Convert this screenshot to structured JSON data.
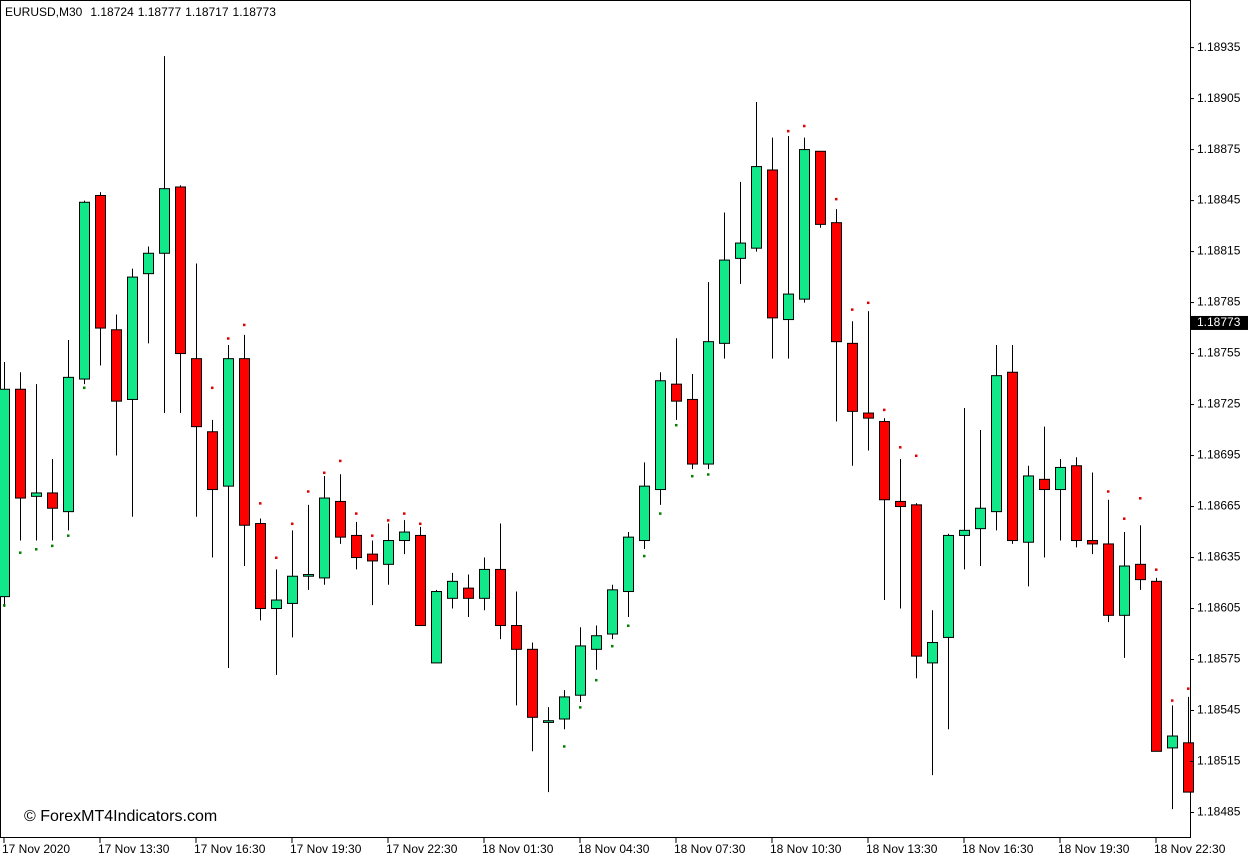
{
  "chart_data": {
    "type": "candlestick",
    "symbol": "EURUSD,M30",
    "quote": [
      1.18724,
      1.18777,
      1.18717,
      1.18773
    ],
    "watermark": "© ForexMT4Indicators.com",
    "current_price": 1.18773,
    "up_color": "#10e88a",
    "down_color": "#ff0000",
    "dot_above_color": "#e00000",
    "dot_below_color": "#008000",
    "ylim": [
      1.1847,
      1.18963
    ],
    "yticks": [
      1.18935,
      1.18905,
      1.18875,
      1.18845,
      1.18815,
      1.18785,
      1.18755,
      1.18725,
      1.18695,
      1.18665,
      1.18635,
      1.18605,
      1.18575,
      1.18545,
      1.18515,
      1.18485
    ],
    "xticks": [
      {
        "value": 0,
        "label": "17 Nov 2020"
      },
      {
        "value": 6,
        "label": "17 Nov 13:30"
      },
      {
        "value": 12,
        "label": "17 Nov 16:30"
      },
      {
        "value": 18,
        "label": "17 Nov 19:30"
      },
      {
        "value": 24,
        "label": "17 Nov 22:30"
      },
      {
        "value": 30,
        "label": "18 Nov 01:30"
      },
      {
        "value": 36,
        "label": "18 Nov 04:30"
      },
      {
        "value": 42,
        "label": "18 Nov 07:30"
      },
      {
        "value": 48,
        "label": "18 Nov 10:30"
      },
      {
        "value": 54,
        "label": "18 Nov 13:30"
      },
      {
        "value": 60,
        "label": "18 Nov 16:30"
      },
      {
        "value": 66,
        "label": "18 Nov 19:30"
      },
      {
        "value": 72,
        "label": "18 Nov 22:30"
      }
    ],
    "open": [
      1.18612,
      1.18734,
      1.18671,
      1.18673,
      1.18662,
      1.1874,
      1.18848,
      1.18769,
      1.18728,
      1.18802,
      1.18814,
      1.18853,
      1.18752,
      1.18709,
      1.18677,
      1.18752,
      1.18655,
      1.18605,
      1.18608,
      1.18624,
      1.18623,
      1.18668,
      1.18648,
      1.18637,
      1.18631,
      1.18645,
      1.18648,
      1.18573,
      1.18611,
      1.18617,
      1.18611,
      1.18628,
      1.18595,
      1.18581,
      1.18538,
      1.1854,
      1.18554,
      1.18581,
      1.1859,
      1.18615,
      1.18645,
      1.18675,
      1.18737,
      1.18728,
      1.1869,
      1.18761,
      1.18811,
      1.18817,
      1.18863,
      1.18775,
      1.18787,
      1.18874,
      1.18832,
      1.18761,
      1.1872,
      1.18715,
      1.18668,
      1.18666,
      1.18573,
      1.18588,
      1.18648,
      1.18652,
      1.18662,
      1.18744,
      1.18644,
      1.18681,
      1.18675,
      1.18689,
      1.18645,
      1.18643,
      1.18601,
      1.18631,
      1.18621,
      1.18523,
      1.18526
    ],
    "high": [
      1.1875,
      1.18744,
      1.18737,
      1.18693,
      1.18763,
      1.18845,
      1.1885,
      1.18778,
      1.18805,
      1.18818,
      1.1893,
      1.18854,
      1.18808,
      1.18716,
      1.1876,
      1.18766,
      1.18658,
      1.18628,
      1.18651,
      1.18666,
      1.18683,
      1.18684,
      1.18656,
      1.18645,
      1.18655,
      1.18657,
      1.18653,
      1.18616,
      1.18626,
      1.18625,
      1.18635,
      1.18655,
      1.18615,
      1.18585,
      1.18547,
      1.18557,
      1.18594,
      1.18595,
      1.18619,
      1.1865,
      1.18691,
      1.18744,
      1.18764,
      1.18743,
      1.18797,
      1.18838,
      1.18856,
      1.18903,
      1.18882,
      1.18883,
      1.18882,
      1.18874,
      1.1884,
      1.18774,
      1.1878,
      1.18717,
      1.18693,
      1.18667,
      1.18604,
      1.18649,
      1.18723,
      1.1871,
      1.1876,
      1.1876,
      1.18689,
      1.18712,
      1.18693,
      1.18694,
      1.18685,
      1.18669,
      1.1865,
      1.18654,
      1.18623,
      1.18548,
      1.18553
    ],
    "low": [
      1.18606,
      1.18645,
      1.18645,
      1.18645,
      1.18651,
      1.18737,
      1.18748,
      1.18695,
      1.18659,
      1.18761,
      1.1872,
      1.1872,
      1.18659,
      1.18635,
      1.1857,
      1.1863,
      1.18598,
      1.18566,
      1.18588,
      1.18616,
      1.18619,
      1.18643,
      1.18628,
      1.18607,
      1.18619,
      1.18637,
      1.18595,
      1.18573,
      1.18605,
      1.186,
      1.18604,
      1.18587,
      1.18548,
      1.18521,
      1.18497,
      1.18534,
      1.1855,
      1.18569,
      1.18587,
      1.186,
      1.1864,
      1.18666,
      1.18716,
      1.18687,
      1.18687,
      1.18752,
      1.18796,
      1.18815,
      1.18752,
      1.18752,
      1.18785,
      1.18829,
      1.18715,
      1.18689,
      1.18698,
      1.1861,
      1.18605,
      1.18564,
      1.18507,
      1.18534,
      1.18628,
      1.1863,
      1.18651,
      1.18643,
      1.18618,
      1.18635,
      1.18645,
      1.18641,
      1.18637,
      1.18597,
      1.18576,
      1.18616,
      1.18521,
      1.18487,
      1.18497
    ],
    "close": [
      1.18734,
      1.1867,
      1.18673,
      1.18664,
      1.18741,
      1.18844,
      1.1877,
      1.18727,
      1.188,
      1.18814,
      1.18852,
      1.18755,
      1.18712,
      1.18675,
      1.18752,
      1.18654,
      1.18605,
      1.1861,
      1.18624,
      1.18625,
      1.1867,
      1.18647,
      1.18635,
      1.18633,
      1.18645,
      1.1865,
      1.18595,
      1.18615,
      1.18621,
      1.18611,
      1.18628,
      1.18595,
      1.18581,
      1.18541,
      1.18539,
      1.18553,
      1.18583,
      1.18589,
      1.18616,
      1.18647,
      1.18677,
      1.18739,
      1.18727,
      1.1869,
      1.18762,
      1.1881,
      1.1882,
      1.18865,
      1.18776,
      1.1879,
      1.18875,
      1.18831,
      1.18762,
      1.18721,
      1.18717,
      1.18669,
      1.18665,
      1.18577,
      1.18585,
      1.18648,
      1.18651,
      1.18664,
      1.18742,
      1.18645,
      1.18683,
      1.18675,
      1.18688,
      1.18645,
      1.18643,
      1.18601,
      1.1863,
      1.18622,
      1.18521,
      1.1853,
      1.18497
    ],
    "dots_above": [
      null,
      null,
      null,
      null,
      null,
      null,
      null,
      null,
      null,
      null,
      null,
      null,
      null,
      1.18735,
      1.18764,
      1.18772,
      1.18667,
      1.18635,
      1.18655,
      1.18674,
      1.18685,
      1.18692,
      1.18661,
      1.18648,
      1.18657,
      1.18661,
      1.18655,
      null,
      null,
      null,
      null,
      null,
      null,
      null,
      null,
      null,
      null,
      null,
      null,
      null,
      null,
      null,
      null,
      null,
      null,
      null,
      null,
      null,
      null,
      1.18886,
      1.18889,
      null,
      1.18846,
      1.18781,
      1.18785,
      1.18722,
      1.187,
      1.18695,
      null,
      null,
      null,
      null,
      null,
      null,
      null,
      null,
      null,
      null,
      null,
      1.18674,
      1.18658,
      1.1867,
      1.18628,
      1.18551,
      1.18558
    ],
    "dots_below": [
      1.18607,
      1.18638,
      1.1864,
      1.18642,
      1.18648,
      1.18735,
      null,
      null,
      null,
      null,
      null,
      null,
      null,
      null,
      null,
      null,
      null,
      null,
      null,
      null,
      null,
      null,
      null,
      null,
      null,
      null,
      null,
      null,
      null,
      null,
      null,
      null,
      null,
      null,
      null,
      1.18524,
      1.18547,
      1.18563,
      1.18583,
      1.18595,
      1.18636,
      1.18661,
      1.18713,
      1.18683,
      1.18684,
      null,
      null,
      null,
      null,
      null,
      null,
      null,
      null,
      null,
      null,
      null,
      null,
      null,
      null,
      null,
      null,
      null,
      null,
      null,
      null,
      null,
      null,
      null,
      null,
      null,
      null,
      null,
      null,
      null,
      null
    ]
  }
}
